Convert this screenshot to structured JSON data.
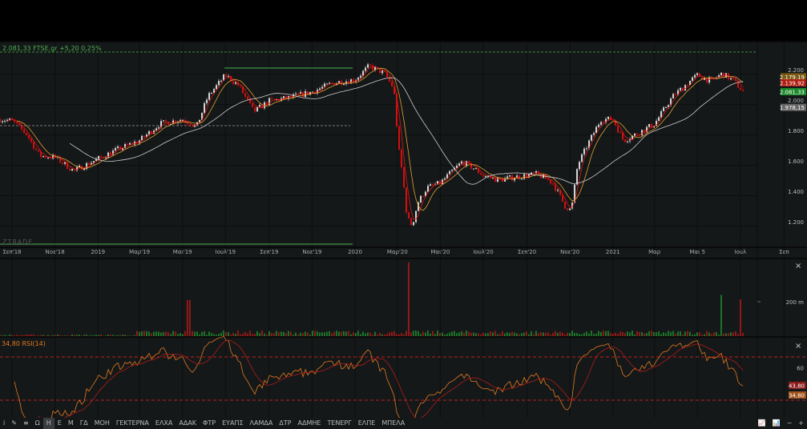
{
  "header": {
    "quote": "2.081,33 FTSE.gr +5,20 0,25%"
  },
  "watermark": "ZTRADE",
  "rsi_panel": {
    "label": "34,80 RSI(14)",
    "close": "×",
    "level_label": "60",
    "badges": [
      {
        "text": "43,80",
        "color": "#8b1a1a"
      },
      {
        "text": "34,80",
        "color": "#a0521a"
      }
    ]
  },
  "volume_panel": {
    "close": "×",
    "axis_label": "200 m"
  },
  "price_badges": [
    {
      "text": "2.179,19",
      "color": "#7a5a12",
      "value": 2179.19
    },
    {
      "text": "2.139,92",
      "color": "#b01c10",
      "value": 2139.92
    },
    {
      "text": "2.081,33",
      "color": "#1a8a2a",
      "value": 2081.33
    },
    {
      "text": "1.978,15",
      "color": "#666666",
      "value": 1978.15
    }
  ],
  "toolbar": {
    "items": [
      "i",
      "✎",
      "≡",
      "Ω",
      "Η",
      "Ε",
      "Μ",
      "ΓΔ",
      "ΜΟΗ",
      "ΓΕΚΤΕΡΝΑ",
      "ΕΛΧΑ",
      "ΑΔΑΚ",
      "ΦΤΡ",
      "ΕΥΑΠΣ",
      "ΛΑΜΔΑ",
      "ΔΤΡ",
      "ΑΔΜΗΕ",
      "ΤΕΝΕΡΓ",
      "ΕΛΠΕ",
      "ΜΠΕΛΑ"
    ],
    "selected": "Η",
    "right": [
      "📈",
      "📊",
      "−",
      "+"
    ]
  },
  "colors": {
    "up": "#d9d9d9",
    "down": "#d80f0f",
    "ma_fast": "#e01515",
    "ma_mid": "#e0a030",
    "ma_slow": "#cccccc",
    "rsi": "#e07a20",
    "rsi_signal": "#b01c1c",
    "bg": "#151819"
  },
  "chart_data": {
    "type": "candlestick",
    "price_axis": {
      "ticks": [
        2200,
        2000,
        1800,
        1600,
        1400,
        1200
      ],
      "tick_labels": [
        "2.200",
        "2.000",
        "1.800",
        "1.600",
        "1.400",
        "1.200"
      ]
    },
    "time_axis": {
      "labels": [
        [
          "2018-09-01",
          "Σεπ'18"
        ],
        [
          "2018-11-01",
          "Νοε'18"
        ],
        [
          "2019-01-01",
          "2019"
        ],
        [
          "2019-03-01",
          "Μαρ'19"
        ],
        [
          "2019-05-01",
          "Μαι'19"
        ],
        [
          "2019-07-01",
          "Ιουλ'19"
        ],
        [
          "2019-09-01",
          "Σεπ'19"
        ],
        [
          "2019-11-01",
          "Νοε'19"
        ],
        [
          "2020-01-01",
          "2020"
        ],
        [
          "2020-03-01",
          "Μαρ'20"
        ],
        [
          "2020-05-01",
          "Μαι'20"
        ],
        [
          "2020-07-01",
          "Ιουλ'20"
        ],
        [
          "2020-09-01",
          "Σεπ'20"
        ],
        [
          "2020-11-01",
          "Νοε'20"
        ],
        [
          "2021-01-01",
          "2021"
        ],
        [
          "2021-03-01",
          "Μαρ"
        ],
        [
          "2021-05-01",
          "Μαι 5"
        ],
        [
          "2021-07-01",
          "Ιουλ"
        ],
        [
          "2021-09-01",
          "Σεπ"
        ]
      ]
    },
    "close_path": [
      [
        "2018-08-15",
        1900
      ],
      [
        "2018-09-01",
        1890
      ],
      [
        "2018-09-22",
        1800
      ],
      [
        "2018-10-10",
        1660
      ],
      [
        "2018-11-01",
        1650
      ],
      [
        "2018-11-28",
        1560
      ],
      [
        "2019-01-01",
        1640
      ],
      [
        "2019-01-28",
        1700
      ],
      [
        "2019-03-01",
        1760
      ],
      [
        "2019-03-30",
        1870
      ],
      [
        "2019-05-01",
        1900
      ],
      [
        "2019-05-21",
        1850
      ],
      [
        "2019-06-06",
        2050
      ],
      [
        "2019-07-01",
        2190
      ],
      [
        "2019-07-20",
        2120
      ],
      [
        "2019-08-10",
        1950
      ],
      [
        "2019-09-01",
        2020
      ],
      [
        "2019-09-28",
        2040
      ],
      [
        "2019-11-01",
        2080
      ],
      [
        "2019-12-01",
        2140
      ],
      [
        "2020-01-01",
        2160
      ],
      [
        "2020-01-21",
        2250
      ],
      [
        "2020-02-12",
        2200
      ],
      [
        "2020-02-25",
        2100
      ],
      [
        "2020-03-03",
        1700
      ],
      [
        "2020-03-08",
        1550
      ],
      [
        "2020-03-15",
        1250
      ],
      [
        "2020-03-22",
        1200
      ],
      [
        "2020-03-30",
        1350
      ],
      [
        "2020-04-12",
        1450
      ],
      [
        "2020-05-01",
        1480
      ],
      [
        "2020-05-16",
        1550
      ],
      [
        "2020-06-01",
        1620
      ],
      [
        "2020-06-17",
        1580
      ],
      [
        "2020-07-01",
        1530
      ],
      [
        "2020-07-23",
        1500
      ],
      [
        "2020-08-15",
        1520
      ],
      [
        "2020-09-01",
        1530
      ],
      [
        "2020-09-16",
        1540
      ],
      [
        "2020-10-08",
        1480
      ],
      [
        "2020-10-25",
        1330
      ],
      [
        "2020-11-03",
        1300
      ],
      [
        "2020-11-12",
        1600
      ],
      [
        "2020-11-28",
        1750
      ],
      [
        "2020-12-15",
        1900
      ],
      [
        "2021-01-01",
        1900
      ],
      [
        "2021-01-16",
        1760
      ],
      [
        "2021-02-02",
        1800
      ],
      [
        "2021-03-01",
        1870
      ],
      [
        "2021-03-27",
        2050
      ],
      [
        "2021-04-20",
        2150
      ],
      [
        "2021-05-01",
        2190
      ],
      [
        "2021-05-20",
        2150
      ],
      [
        "2021-06-05",
        2200
      ],
      [
        "2021-06-22",
        2150
      ],
      [
        "2021-07-05",
        2080
      ]
    ],
    "volume_spikes_m": [
      [
        "2019-05-10",
        210
      ],
      [
        "2020-03-18",
        430
      ],
      [
        "2021-06-05",
        240
      ],
      [
        "2021-07-02",
        215
      ]
    ],
    "rsi_levels": [
      70,
      30
    ]
  }
}
